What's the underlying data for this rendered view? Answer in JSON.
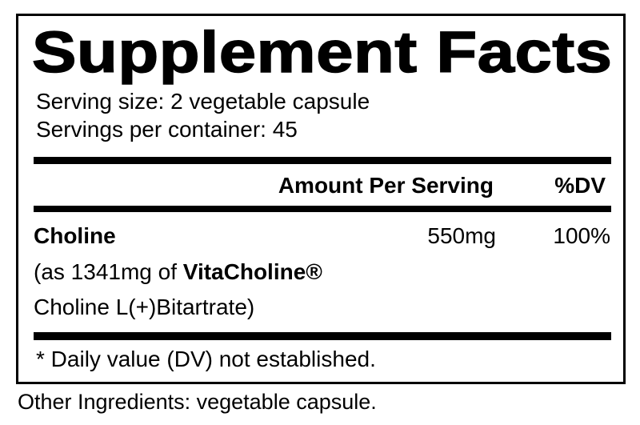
{
  "label": {
    "title": "Supplement Facts",
    "serving_size": "Serving size: 2 vegetable capsule",
    "servings_per_container": "Servings per container: 45",
    "header": {
      "amount": "Amount Per Serving",
      "dv": "%DV"
    },
    "ingredients": [
      {
        "name": "Choline",
        "amount": "550mg",
        "dv": "100%",
        "detail_prefix": "(as 1341mg of ",
        "detail_brand": "VitaCholine®",
        "detail_line2": "Choline L(+)Bitartrate)"
      }
    ],
    "footnote": "* Daily value (DV) not established.",
    "other_ingredients": "Other Ingredients: vegetable capsule."
  }
}
